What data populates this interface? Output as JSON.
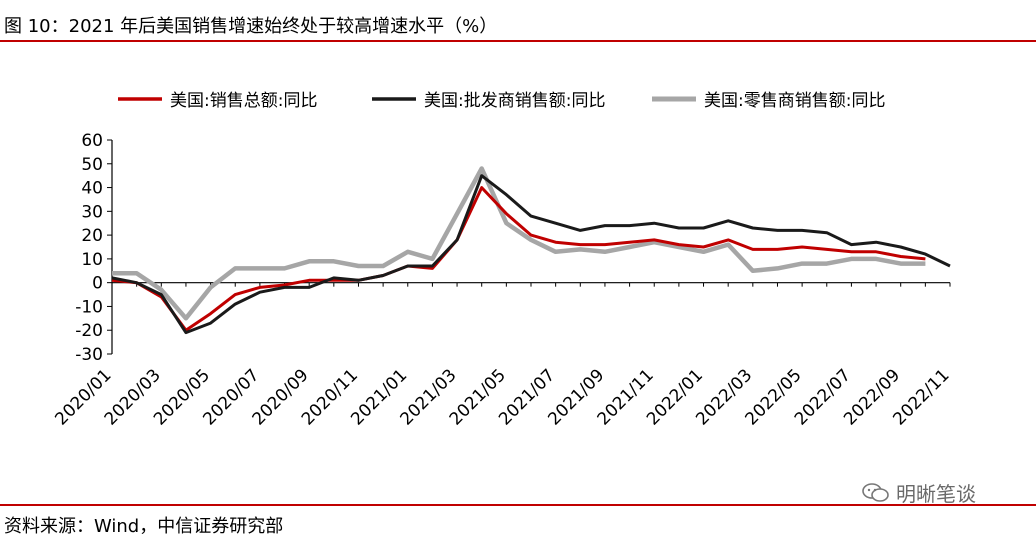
{
  "header": {
    "title": "图 10：2021 年后美国销售增速始终处于较高增速水平（%）"
  },
  "footer": {
    "source": "资料来源：Wind，中信证券研究部",
    "watermark": "明晰笔谈"
  },
  "colors": {
    "series_total": "#c00000",
    "series_wholesale": "#1a1a1a",
    "series_retail": "#a6a6a6",
    "rule": "#c00000"
  },
  "chart_data": {
    "type": "line",
    "title": "",
    "xlabel": "",
    "ylabel": "",
    "ylim": [
      -30,
      60
    ],
    "yticks": [
      60,
      50,
      40,
      30,
      20,
      10,
      0,
      -10,
      -20,
      -30
    ],
    "legend_position": "top",
    "x": [
      "2020/01",
      "2020/02",
      "2020/03",
      "2020/04",
      "2020/05",
      "2020/06",
      "2020/07",
      "2020/08",
      "2020/09",
      "2020/10",
      "2020/11",
      "2020/12",
      "2021/01",
      "2021/02",
      "2021/03",
      "2021/04",
      "2021/05",
      "2021/06",
      "2021/07",
      "2021/08",
      "2021/09",
      "2021/10",
      "2021/11",
      "2021/12",
      "2022/01",
      "2022/02",
      "2022/03",
      "2022/04",
      "2022/05",
      "2022/06",
      "2022/07",
      "2022/08",
      "2022/09",
      "2022/10",
      "2022/11"
    ],
    "xtick_labels": [
      "2020/01",
      "2020/03",
      "2020/05",
      "2020/07",
      "2020/09",
      "2020/11",
      "2021/01",
      "2021/03",
      "2021/05",
      "2021/07",
      "2021/09",
      "2021/11",
      "2022/01",
      "2022/03",
      "2022/05",
      "2022/07",
      "2022/09",
      "2022/11"
    ],
    "series": [
      {
        "name": "美国:销售总额:同比",
        "values": [
          1,
          0,
          -6,
          -20,
          -13,
          -5,
          -2,
          -1,
          1,
          1,
          1,
          3,
          7,
          6,
          18,
          40,
          29,
          20,
          17,
          16,
          16,
          17,
          18,
          16,
          15,
          18,
          14,
          14,
          15,
          14,
          13,
          13,
          11,
          10,
          null
        ]
      },
      {
        "name": "美国:批发商销售额:同比",
        "values": [
          2,
          0,
          -5,
          -21,
          -17,
          -9,
          -4,
          -2,
          -2,
          2,
          1,
          3,
          7,
          7,
          18,
          45,
          37,
          28,
          25,
          22,
          24,
          24,
          25,
          23,
          23,
          26,
          23,
          22,
          22,
          21,
          16,
          17,
          15,
          12,
          7
        ]
      },
      {
        "name": "美国:零售商销售额:同比",
        "values": [
          4,
          4,
          -3,
          -15,
          -2,
          6,
          6,
          6,
          9,
          9,
          7,
          7,
          13,
          10,
          29,
          48,
          25,
          18,
          13,
          14,
          13,
          15,
          17,
          15,
          13,
          16,
          5,
          6,
          8,
          8,
          10,
          10,
          8,
          8,
          null
        ]
      }
    ]
  }
}
